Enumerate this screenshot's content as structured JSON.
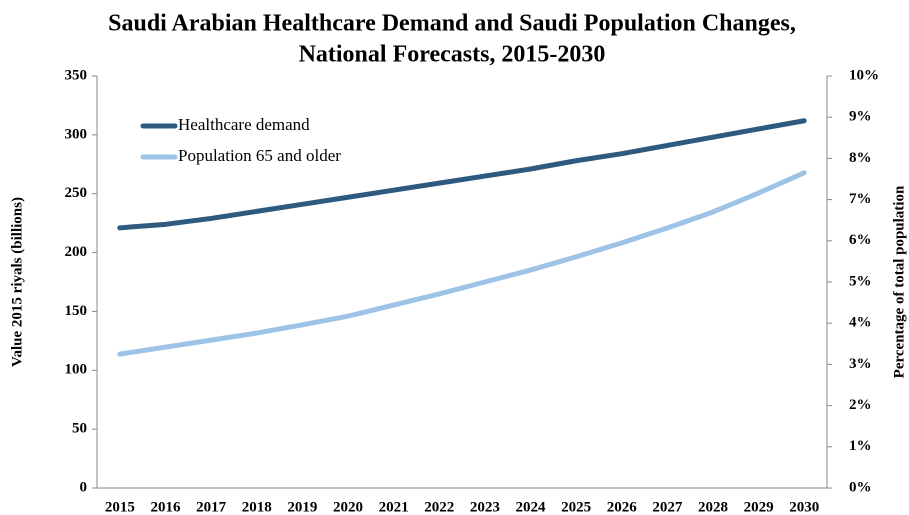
{
  "chart_data": {
    "type": "line",
    "title": [
      "Saudi Arabian Healthcare Demand and Saudi Population Changes,",
      "National Forecasts, 2015-2030"
    ],
    "y_label": "Value 2015 riyals (billions)",
    "y2_label": "Percentage of total population",
    "categories": [
      "2015",
      "2016",
      "2017",
      "2018",
      "2019",
      "2020",
      "2021",
      "2022",
      "2023",
      "2024",
      "2025",
      "2026",
      "2027",
      "2028",
      "2029",
      "2030"
    ],
    "series": [
      {
        "name": "Healthcare demand",
        "color": "#2e5a80",
        "values": [
          221,
          224,
          229,
          235,
          241,
          247,
          253,
          259,
          265,
          271,
          278,
          284,
          291,
          298,
          305,
          312
        ]
      },
      {
        "name": "Population 65 and older",
        "color": "#9dc3e6",
        "axis": "y2",
        "values": [
          3.25,
          3.42,
          3.59,
          3.76,
          3.96,
          4.17,
          4.44,
          4.71,
          5.0,
          5.29,
          5.61,
          5.95,
          6.31,
          6.7,
          7.16,
          7.65
        ]
      }
    ],
    "ylim": [
      0,
      350
    ],
    "yticks": [
      0,
      50,
      100,
      150,
      200,
      250,
      300,
      350
    ],
    "y2lim": [
      0,
      10
    ],
    "y2ticks": [
      {
        "value": 0,
        "label": "0%"
      },
      {
        "value": 1,
        "label": "1%"
      },
      {
        "value": 2,
        "label": "2%"
      },
      {
        "value": 3,
        "label": "3%"
      },
      {
        "value": 4,
        "label": "4%"
      },
      {
        "value": 5,
        "label": "5%"
      },
      {
        "value": 6,
        "label": "6%"
      },
      {
        "value": 7,
        "label": "7%"
      },
      {
        "value": 8,
        "label": "8%"
      },
      {
        "value": 9,
        "label": "9%"
      },
      {
        "value": 10,
        "label": "10%"
      }
    ],
    "grid": false,
    "legend": "upper left"
  }
}
